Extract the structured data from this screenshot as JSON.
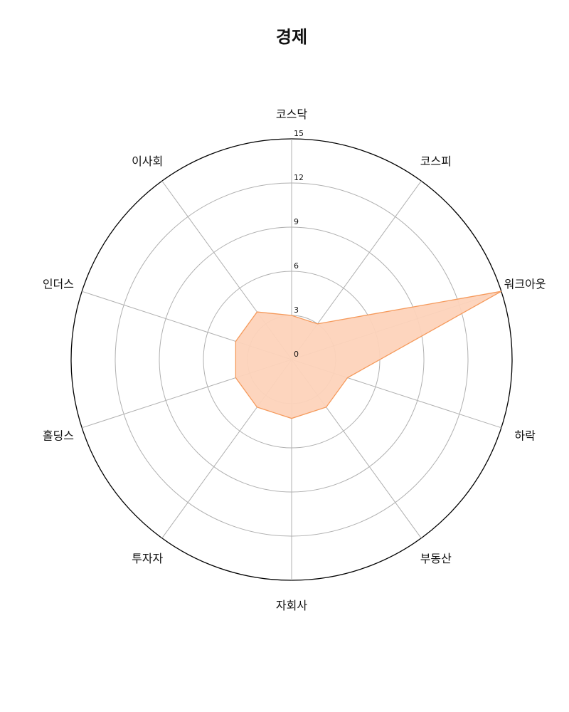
{
  "chart_data": {
    "type": "radar",
    "title": "경제",
    "categories": [
      "코스닥",
      "코스피",
      "워크아웃",
      "하락",
      "부동산",
      "자회사",
      "투자자",
      "홀딩스",
      "인더스",
      "이사회"
    ],
    "series": [
      {
        "values": [
          3,
          3,
          15,
          4,
          4,
          4,
          4,
          4,
          4,
          4
        ]
      }
    ],
    "rlim": [
      0,
      15
    ],
    "r_ticks": [
      0,
      3,
      6,
      9,
      12,
      15
    ],
    "grid": true,
    "colors": {
      "fill": "#fdd3bb",
      "stroke": "#f59a5c"
    }
  }
}
